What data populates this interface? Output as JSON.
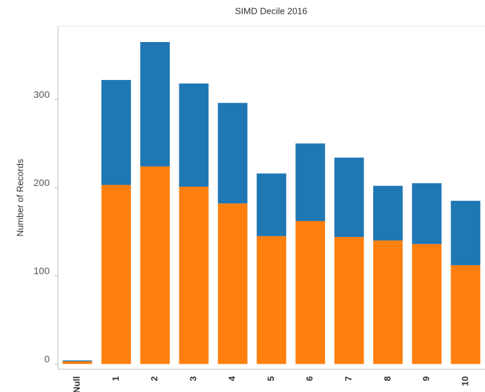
{
  "chart_data": {
    "type": "stacked_bar",
    "title": "SIMD Decile 2016",
    "y_label": "Number of Records",
    "categories": [
      "Null",
      "1",
      "2",
      "3",
      "4",
      "5",
      "6",
      "7",
      "8",
      "9",
      "10"
    ],
    "series": [
      {
        "color": "#ff7f0e",
        "values": [
          3,
          203,
          224,
          201,
          182,
          145,
          162,
          144,
          140,
          136,
          112
        ]
      },
      {
        "color": "#1f77b4",
        "values": [
          1,
          119,
          141,
          117,
          114,
          71,
          88,
          90,
          62,
          69,
          73
        ]
      }
    ],
    "ylim": [
      -6,
      383
    ],
    "yticks": [
      0,
      100,
      200,
      300
    ],
    "grid": false
  }
}
